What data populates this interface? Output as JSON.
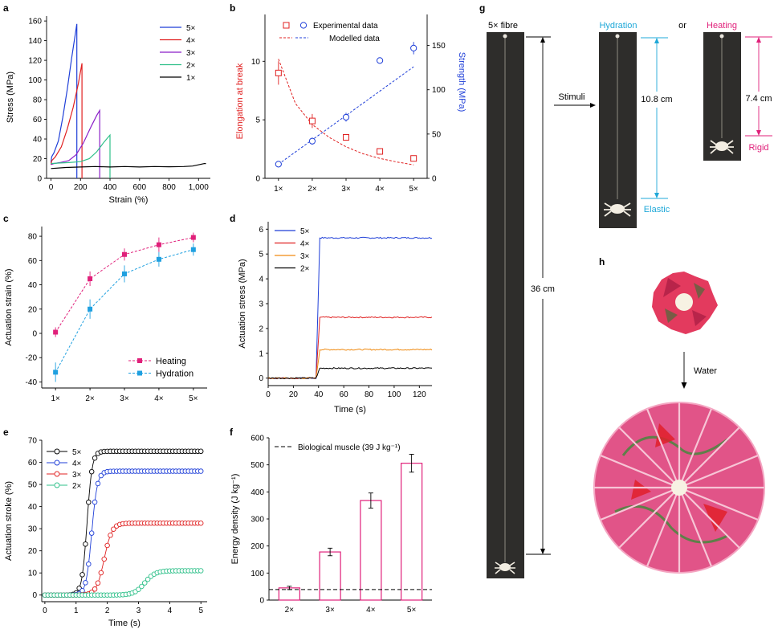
{
  "colors": {
    "s5": "#1f3fd8",
    "s4": "#e02020",
    "s3": "#8a1fc8",
    "s2": "#2fc08a",
    "s1": "#000000",
    "d5": "#1f3fd8",
    "d4": "#e02020",
    "d3": "#f08a10",
    "d2": "#000000",
    "heating": "#e0207a",
    "hydration": "#1fa0e0",
    "elong": "#e02020",
    "strength": "#1f3fd8",
    "bar": "#e0207a",
    "cyan": "#1fa8d8",
    "magenta": "#e0207a"
  },
  "chart_data": [
    {
      "panel": "a",
      "type": "line",
      "xlabel": "Strain (%)",
      "ylabel": "Stress (MPa)",
      "xlim": [
        -30,
        1080
      ],
      "ylim": [
        0,
        165
      ],
      "xticks": [
        0,
        200,
        400,
        600,
        800,
        1000
      ],
      "xtick_labels": [
        "0",
        "200",
        "400",
        "600",
        "800",
        "1,000"
      ],
      "yticks": [
        0,
        20,
        40,
        60,
        80,
        100,
        120,
        140,
        160
      ],
      "legend": "top-right",
      "series": [
        {
          "name": "5×",
          "color_key": "s5",
          "x": [
            0,
            5,
            20,
            50,
            80,
            110,
            140,
            175,
            175
          ],
          "y": [
            16,
            22,
            26,
            38,
            62,
            90,
            122,
            157,
            0
          ]
        },
        {
          "name": "4×",
          "color_key": "s4",
          "x": [
            0,
            5,
            30,
            70,
            110,
            150,
            185,
            210,
            210
          ],
          "y": [
            14,
            18,
            22,
            32,
            50,
            72,
            96,
            117,
            0
          ]
        },
        {
          "name": "3×",
          "color_key": "s3",
          "x": [
            0,
            20,
            60,
            120,
            170,
            220,
            270,
            310,
            330,
            330
          ],
          "y": [
            14,
            15,
            16,
            18,
            24,
            36,
            52,
            64,
            69,
            0
          ]
        },
        {
          "name": "2×",
          "color_key": "s2",
          "x": [
            0,
            50,
            120,
            200,
            260,
            310,
            360,
            400,
            400
          ],
          "y": [
            15,
            15.5,
            16,
            17,
            20,
            27,
            37,
            44,
            0
          ]
        },
        {
          "name": "1×",
          "color_key": "s1",
          "x": [
            0,
            100,
            200,
            300,
            400,
            500,
            600,
            700,
            800,
            900,
            960,
            1040,
            1050
          ],
          "y": [
            10,
            11,
            11.5,
            12,
            11.5,
            12,
            11.5,
            12,
            11.8,
            12,
            12.5,
            15,
            15
          ]
        }
      ]
    },
    {
      "panel": "b",
      "type": "scatter",
      "categories": [
        "1×",
        "2×",
        "3×",
        "4×",
        "5×"
      ],
      "ylabel_left": "Elongation at break",
      "ylabel_right": "Strength (MPa)",
      "ylim_left": [
        0,
        14
      ],
      "yticks_left": [
        0,
        5,
        10
      ],
      "ylim_right": [
        0,
        185
      ],
      "yticks_right": [
        0,
        50,
        100,
        150
      ],
      "legend": [
        "Experimental data",
        "Modelled data"
      ],
      "series": [
        {
          "name": "Elongation at break",
          "axis": "left",
          "color_key": "elong",
          "marker": "square",
          "values": [
            9.0,
            4.9,
            3.5,
            2.3,
            1.7
          ],
          "errors": [
            1.0,
            0.6,
            0,
            0,
            0
          ]
        },
        {
          "name": "Strength",
          "axis": "right",
          "color_key": "strength",
          "marker": "circle",
          "values": [
            16,
            42,
            69,
            133,
            147
          ],
          "errors": [
            0,
            4,
            5,
            0,
            7
          ]
        }
      ],
      "model_left_x": [
        1,
        1.5,
        2,
        2.5,
        3,
        3.5,
        4,
        4.5,
        5
      ],
      "model_left_y": [
        10.2,
        6.4,
        4.6,
        3.5,
        2.7,
        2.1,
        1.7,
        1.4,
        1.15
      ],
      "model_right_x": [
        1,
        5
      ],
      "model_right_y": [
        16,
        126
      ]
    },
    {
      "panel": "c",
      "type": "line",
      "categories": [
        "1×",
        "2×",
        "3×",
        "4×",
        "5×"
      ],
      "ylabel": "Actuation strain (%)",
      "ylim": [
        -45,
        88
      ],
      "yticks": [
        -40,
        -20,
        0,
        20,
        40,
        60,
        80
      ],
      "legend": "bottom-right",
      "series": [
        {
          "name": "Heating",
          "color_key": "heating",
          "marker": "square",
          "values": [
            1,
            45,
            65,
            73,
            79
          ],
          "errors": [
            4,
            6,
            5,
            6,
            4
          ]
        },
        {
          "name": "Hydration",
          "color_key": "hydration",
          "marker": "square",
          "values": [
            -32,
            20,
            49,
            61,
            69
          ],
          "errors": [
            8,
            8,
            7,
            6,
            5
          ]
        }
      ]
    },
    {
      "panel": "d",
      "type": "line",
      "xlabel": "Time (s)",
      "ylabel": "Actuation stress (MPa)",
      "xlim": [
        0,
        130
      ],
      "ylim": [
        -0.3,
        6.3
      ],
      "xticks": [
        0,
        20,
        40,
        60,
        80,
        100,
        120
      ],
      "yticks": [
        0,
        1,
        2,
        3,
        4,
        5,
        6
      ],
      "legend": "top-left",
      "series": [
        {
          "name": "5×",
          "color_key": "d5",
          "level": 5.65
        },
        {
          "name": "4×",
          "color_key": "d4",
          "level": 2.45
        },
        {
          "name": "3×",
          "color_key": "d3",
          "level": 1.15
        },
        {
          "name": "2×",
          "color_key": "d2",
          "level": 0.4
        }
      ],
      "onset": 38,
      "rise_end": 41
    },
    {
      "panel": "e",
      "type": "line",
      "xlabel": "Time (s)",
      "ylabel": "Actuation stroke (%)",
      "xlim": [
        -0.1,
        5.2
      ],
      "ylim": [
        -3,
        70
      ],
      "xticks": [
        0,
        1,
        2,
        3,
        4,
        5
      ],
      "yticks": [
        0,
        10,
        20,
        30,
        40,
        50,
        60,
        70
      ],
      "legend": "top-left",
      "series": [
        {
          "name": "5×",
          "color_key": "s1",
          "x0": 1.35,
          "k": 12,
          "plateau": 65
        },
        {
          "name": "4×",
          "color_key": "s5",
          "x0": 1.5,
          "k": 11,
          "plateau": 56
        },
        {
          "name": "3×",
          "color_key": "s4",
          "x0": 1.9,
          "k": 8,
          "plateau": 32.5
        },
        {
          "name": "2×",
          "color_key": "s2",
          "x0": 3.2,
          "k": 6,
          "plateau": 11
        }
      ]
    },
    {
      "panel": "f",
      "type": "bar",
      "categories": [
        "2×",
        "3×",
        "4×",
        "5×"
      ],
      "values": [
        45,
        178,
        368,
        506
      ],
      "errors": [
        6,
        14,
        28,
        33
      ],
      "ylabel": "Energy density (J kg⁻¹)",
      "ylim": [
        0,
        600
      ],
      "yticks": [
        0,
        100,
        200,
        300,
        400,
        500,
        600
      ],
      "reference": {
        "label": "Biological muscle (39 J kg⁻¹)",
        "value": 39
      }
    }
  ],
  "panel_labels": {
    "a": "a",
    "b": "b",
    "c": "c",
    "d": "d",
    "e": "e",
    "f": "f",
    "g": "g",
    "h": "h"
  },
  "photos": {
    "fibre_label": "5× fibre",
    "fibre_length": "36 cm",
    "stimuli": "Stimuli",
    "hydration": "Hydration",
    "or": "or",
    "heating": "Heating",
    "hydration_length": "10.8 cm",
    "heating_length": "7.4 cm",
    "elastic": "Elastic",
    "rigid": "Rigid",
    "water": "Water"
  }
}
